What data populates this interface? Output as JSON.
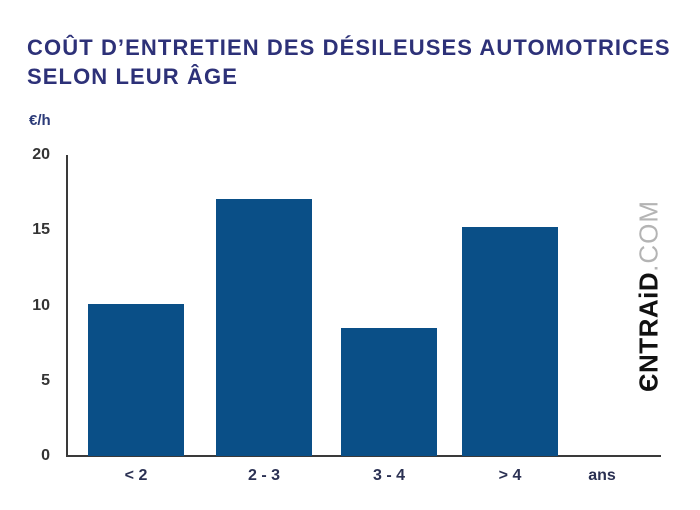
{
  "header": {
    "title_line1": "COÛT D’ENTRETIEN DES DÉSILEUSES AUTOMOTRICES",
    "title_line2": "SELON LEUR ÂGE",
    "title_color": "#2d3178"
  },
  "chart_data": {
    "type": "bar",
    "title": "COÛT D’ENTRETIEN DES DÉSILEUSES AUTOMOTRICES SELON LEUR ÂGE",
    "ylabel": "€/h",
    "xlabel": "ans",
    "categories": [
      "< 2",
      "2 - 3",
      "3 - 4",
      "> 4"
    ],
    "values": [
      10.1,
      17.1,
      8.5,
      15.2
    ],
    "yticks": [
      0,
      5,
      10,
      15,
      20
    ],
    "ylim": [
      0,
      20
    ],
    "grid": false,
    "legend": "none",
    "bar_color": "#0a4f87",
    "axis_color": "#3a3a3a",
    "ytick_label_color": "#343434",
    "xtick_label_color": "#2b3153",
    "ylabel_color": "#2b3a78"
  },
  "watermark": {
    "brand_bold": "ЄNTRAiD",
    "brand_light": ".COM"
  }
}
